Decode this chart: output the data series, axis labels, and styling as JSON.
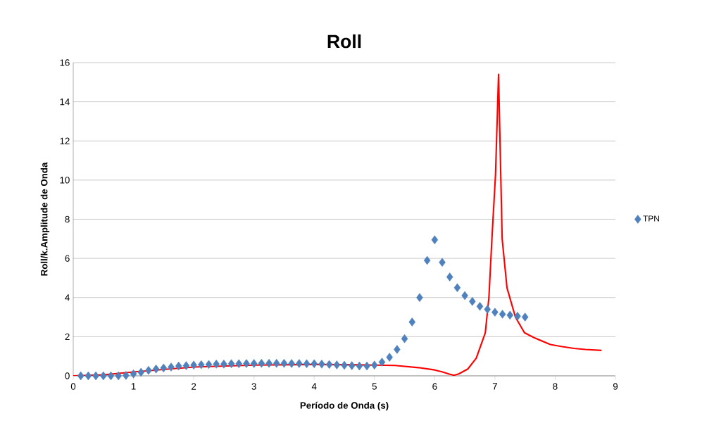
{
  "chart_data": {
    "type": "line",
    "title": "Roll",
    "xlabel": "Período de Onda (s)",
    "ylabel": "Roll/k.Amplitude de Onda",
    "xlim": [
      0,
      9
    ],
    "xticks": [
      0,
      1,
      2,
      3,
      4,
      5,
      6,
      7,
      8,
      9
    ],
    "ylim": [
      0,
      16
    ],
    "yticks": [
      0,
      2,
      4,
      6,
      8,
      10,
      12,
      14,
      16
    ],
    "grid": "y",
    "legend": "right",
    "series": [
      {
        "name": "TPN",
        "type": "scatter",
        "marker": "diamond",
        "color": "#4f81bd",
        "x": [
          0.125,
          0.25,
          0.375,
          0.5,
          0.625,
          0.75,
          0.875,
          1.0,
          1.125,
          1.25,
          1.375,
          1.5,
          1.625,
          1.75,
          1.875,
          2.0,
          2.125,
          2.25,
          2.375,
          2.5,
          2.625,
          2.75,
          2.875,
          3.0,
          3.125,
          3.25,
          3.375,
          3.5,
          3.625,
          3.75,
          3.875,
          4.0,
          4.125,
          4.25,
          4.375,
          4.5,
          4.625,
          4.75,
          4.875,
          5.0,
          5.125,
          5.25,
          5.375,
          5.5,
          5.625,
          5.75,
          5.875,
          6.0,
          6.125,
          6.25,
          6.375,
          6.5,
          6.625,
          6.75,
          6.875,
          7.0,
          7.125,
          7.25,
          7.375,
          7.5
        ],
        "values": [
          0,
          0,
          0,
          0,
          0,
          0,
          0.02,
          0.1,
          0.18,
          0.28,
          0.35,
          0.4,
          0.45,
          0.5,
          0.52,
          0.55,
          0.57,
          0.58,
          0.6,
          0.6,
          0.62,
          0.62,
          0.63,
          0.63,
          0.64,
          0.64,
          0.64,
          0.64,
          0.63,
          0.63,
          0.62,
          0.62,
          0.6,
          0.58,
          0.56,
          0.54,
          0.52,
          0.5,
          0.5,
          0.55,
          0.7,
          0.95,
          1.35,
          1.9,
          2.75,
          4.0,
          5.9,
          6.95,
          5.8,
          5.05,
          4.5,
          4.1,
          3.8,
          3.55,
          3.4,
          3.25,
          3.15,
          3.1,
          3.05,
          3.0
        ]
      },
      {
        "type": "line",
        "marker": "none",
        "line_style": "solid",
        "color": "#ff0000",
        "x": [
          0,
          0.5,
          1,
          2,
          3,
          4,
          4.5,
          5,
          5.34,
          5.73,
          6.0,
          6.13,
          6.25,
          6.32,
          6.4,
          6.55,
          6.69,
          6.84,
          6.9,
          6.95,
          7.01,
          7.06,
          7.12,
          7.2,
          7.34,
          7.49,
          7.65,
          7.92,
          8.1,
          8.31,
          8.5,
          8.77
        ],
        "values": [
          0,
          0.05,
          0.2,
          0.45,
          0.55,
          0.58,
          0.57,
          0.55,
          0.53,
          0.42,
          0.3,
          0.2,
          0.08,
          0.03,
          0.1,
          0.35,
          0.9,
          2.2,
          4.0,
          7.0,
          10.3,
          15.4,
          7.0,
          4.5,
          3.0,
          2.2,
          1.95,
          1.6,
          1.5,
          1.4,
          1.35,
          1.3
        ]
      }
    ]
  }
}
